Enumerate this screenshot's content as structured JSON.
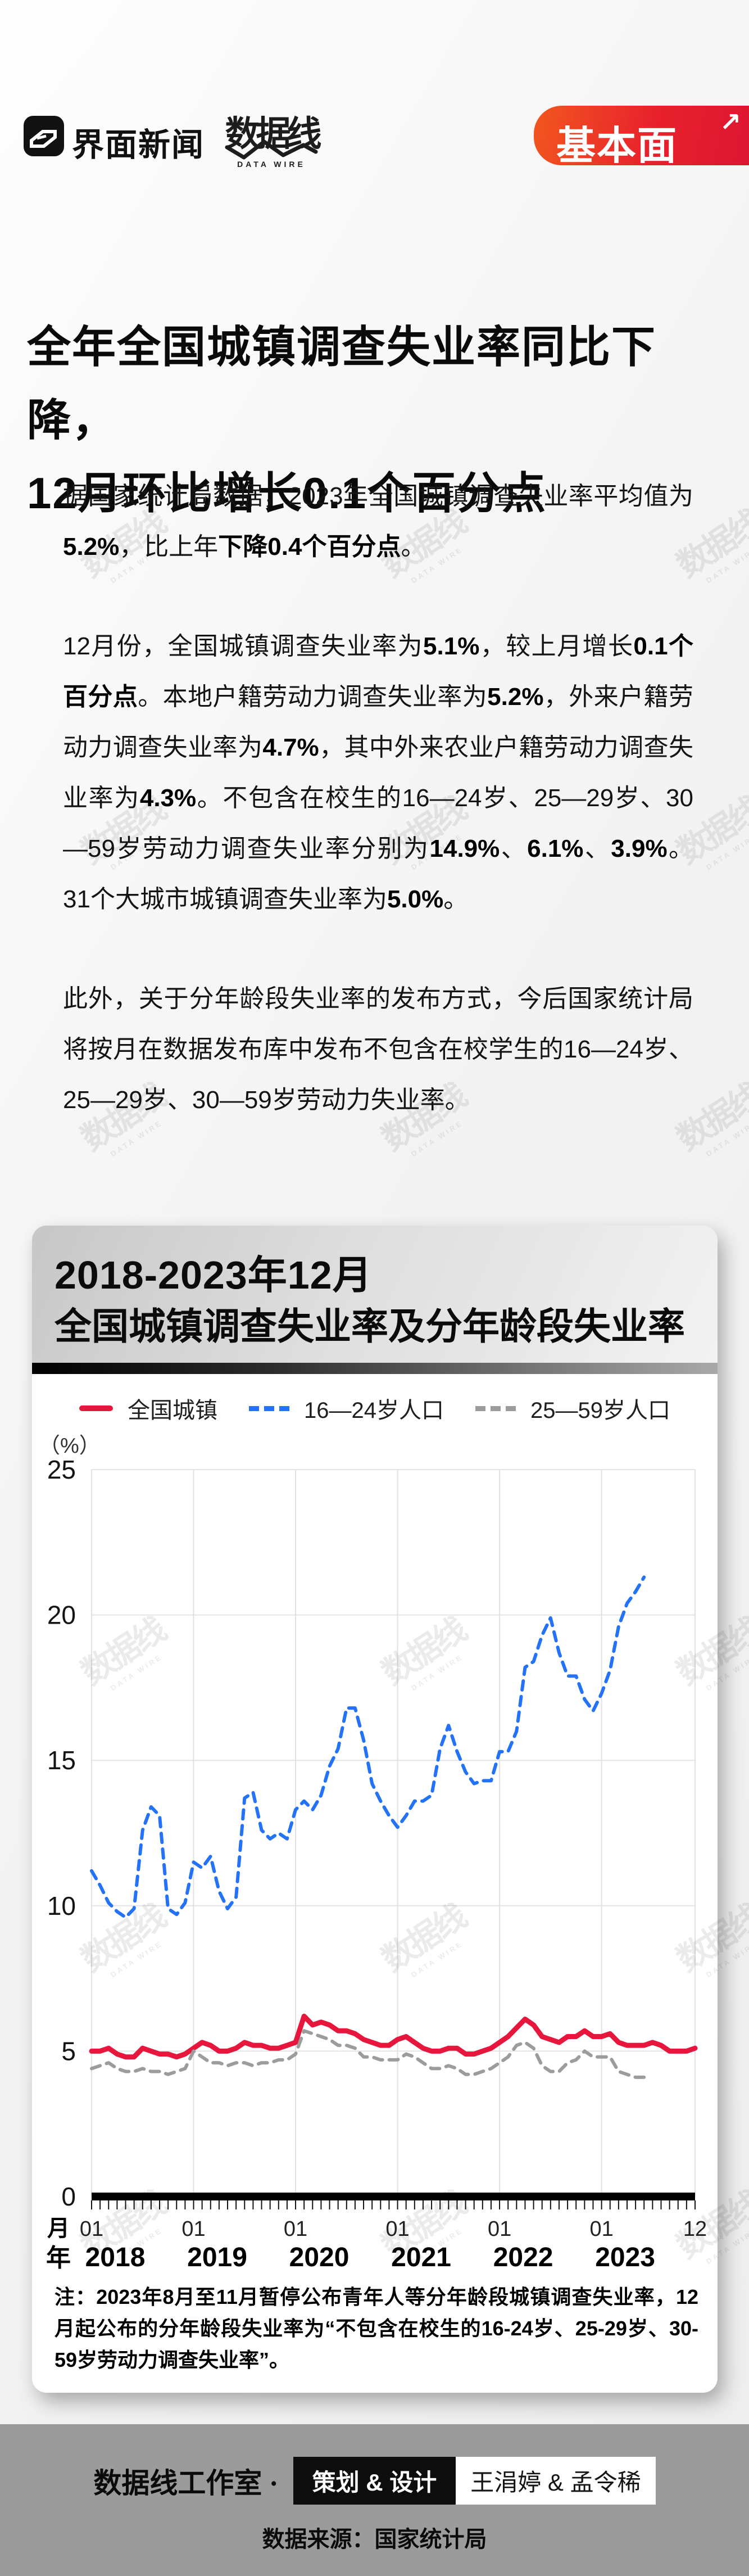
{
  "header": {
    "jiemian_logo_text": "界面新闻",
    "datawire_logo_text": "数据线",
    "datawire_logo_sub": "DATA WIRE",
    "jibenmian_logo_text": "基本面",
    "jibenmian_arrow_icon": "arrow-up-right",
    "jibenmian_colors": [
      "#f2571f",
      "#de1531"
    ]
  },
  "article": {
    "title_line1": "全年全国城镇调查失业率同比下降，",
    "title_line2": "12月环比增长0.1个百分点",
    "paragraphs": [
      {
        "runs": [
          {
            "t": "据国家统计局数据，2023年全国城镇调查失业率平均值为",
            "b": false
          },
          {
            "t": "5.2%",
            "b": true
          },
          {
            "t": "，比上年",
            "b": false
          },
          {
            "t": "下降0.4个百分点",
            "b": true
          },
          {
            "t": "。",
            "b": false
          }
        ]
      },
      {
        "runs": [
          {
            "t": "12月份，全国城镇调查失业率为",
            "b": false
          },
          {
            "t": "5.1%",
            "b": true
          },
          {
            "t": "，较上月增长",
            "b": false
          },
          {
            "t": "0.1个百分点",
            "b": true
          },
          {
            "t": "。本地户籍劳动力调查失业率为",
            "b": false
          },
          {
            "t": "5.2%",
            "b": true
          },
          {
            "t": "，外来户籍劳动力调查失业率为",
            "b": false
          },
          {
            "t": "4.7%",
            "b": true
          },
          {
            "t": "，其中外来农业户籍劳动力调查失业率为",
            "b": false
          },
          {
            "t": "4.3%",
            "b": true
          },
          {
            "t": "。不包含在校生的16—24岁、25—29岁、30—59岁劳动力调查失业率分别为",
            "b": false
          },
          {
            "t": "14.9%",
            "b": true
          },
          {
            "t": "、",
            "b": false
          },
          {
            "t": "6.1%",
            "b": true
          },
          {
            "t": "、",
            "b": false
          },
          {
            "t": "3.9%",
            "b": true
          },
          {
            "t": "。31个大城市城镇调查失业率为",
            "b": false
          },
          {
            "t": "5.0%",
            "b": true
          },
          {
            "t": "。",
            "b": false
          }
        ]
      },
      {
        "runs": [
          {
            "t": "此外，关于分年龄段失业率的发布方式，今后国家统计局将按月在数据发布库中发布不包含在校学生的16—24岁、25—29岁、30—59岁劳动力失业率。",
            "b": false
          }
        ]
      }
    ]
  },
  "chart": {
    "card_title_line1": "2018-2023年12月",
    "card_title_line2": "全国城镇调查失业率及分年龄段失业率",
    "unit_label": "（%）",
    "month_axis_label": "月",
    "year_axis_label": "年",
    "note": "注：2023年8月至11月暂停公布青年人等分年龄段城镇调查失业率，12月起公布的分年龄段失业率为“不包含在校生的16-24岁、25-29岁、30-59岁劳动力调查失业率”。"
  },
  "chart_data": {
    "type": "line",
    "title": "2018-2023年12月 全国城镇调查失业率及分年龄段失业率",
    "ylabel": "（%）",
    "ylim": [
      0,
      25
    ],
    "y_ticks": [
      "0",
      "5",
      "10",
      "15",
      "20",
      "25"
    ],
    "grid": true,
    "legend_position": "top",
    "x_axis": {
      "unit": "month",
      "start": "2018-01",
      "end": "2023-12",
      "month_tick_label": "01",
      "end_tick_label": "12",
      "year_ticks": [
        "2018",
        "2019",
        "2020",
        "2021",
        "2022",
        "2023"
      ]
    },
    "series": [
      {
        "name": "全国城镇",
        "color": "#e6163c",
        "style": "solid",
        "start": "2018-01",
        "values": [
          5.0,
          5.0,
          5.1,
          4.9,
          4.8,
          4.8,
          5.1,
          5.0,
          4.9,
          4.9,
          4.8,
          4.9,
          5.1,
          5.3,
          5.2,
          5.0,
          5.0,
          5.1,
          5.3,
          5.2,
          5.2,
          5.1,
          5.1,
          5.2,
          5.3,
          6.2,
          5.9,
          6.0,
          5.9,
          5.7,
          5.7,
          5.6,
          5.4,
          5.3,
          5.2,
          5.2,
          5.4,
          5.5,
          5.3,
          5.1,
          5.0,
          5.0,
          5.1,
          5.1,
          4.9,
          4.9,
          5.0,
          5.1,
          5.3,
          5.5,
          5.8,
          6.1,
          5.9,
          5.5,
          5.4,
          5.3,
          5.5,
          5.5,
          5.7,
          5.5,
          5.5,
          5.6,
          5.3,
          5.2,
          5.2,
          5.2,
          5.3,
          5.2,
          5.0,
          5.0,
          5.0,
          5.1
        ]
      },
      {
        "name": "16—24岁人口",
        "color": "#2472f5",
        "style": "dashed",
        "start": "2018-01",
        "values": [
          11.2,
          10.7,
          10.1,
          9.8,
          9.6,
          9.9,
          12.6,
          13.4,
          13.1,
          9.9,
          9.7,
          10.1,
          11.5,
          11.3,
          11.7,
          10.5,
          9.9,
          10.3,
          13.7,
          13.9,
          12.6,
          12.3,
          12.5,
          12.3,
          13.3,
          13.6,
          13.3,
          13.8,
          14.8,
          15.4,
          16.8,
          16.8,
          15.7,
          14.2,
          13.6,
          13.1,
          12.7,
          13.1,
          13.6,
          13.6,
          13.8,
          15.4,
          16.2,
          15.3,
          14.6,
          14.2,
          14.3,
          14.3,
          15.3,
          15.3,
          16.0,
          18.2,
          18.4,
          19.3,
          19.9,
          18.7,
          17.9,
          17.9,
          17.1,
          16.7,
          17.3,
          18.1,
          19.6,
          20.4,
          20.8,
          21.3
        ]
      },
      {
        "name": "25—59岁人口",
        "color": "#9c9c9c",
        "style": "dashed",
        "start": "2018-01",
        "values": [
          4.4,
          4.5,
          4.6,
          4.4,
          4.3,
          4.3,
          4.4,
          4.3,
          4.3,
          4.2,
          4.3,
          4.4,
          5.0,
          4.8,
          4.6,
          4.6,
          4.5,
          4.6,
          4.6,
          4.5,
          4.6,
          4.6,
          4.7,
          4.7,
          4.9,
          5.7,
          5.6,
          5.5,
          5.4,
          5.2,
          5.2,
          5.1,
          4.8,
          4.8,
          4.7,
          4.7,
          4.7,
          4.9,
          4.8,
          4.6,
          4.4,
          4.4,
          4.5,
          4.4,
          4.2,
          4.2,
          4.3,
          4.4,
          4.6,
          4.8,
          5.2,
          5.3,
          5.1,
          4.5,
          4.3,
          4.3,
          4.6,
          4.7,
          5.0,
          4.8,
          4.8,
          4.8,
          4.3,
          4.2,
          4.1,
          4.1
        ]
      }
    ]
  },
  "watermark": {
    "text": "数据线",
    "sub": "DATA WIRE"
  },
  "footer": {
    "studio": "数据线工作室 ·",
    "black_box": "策划 & 设计",
    "white_box": "王涓婷 & 孟令稀",
    "source": "数据来源：国家统计局"
  }
}
